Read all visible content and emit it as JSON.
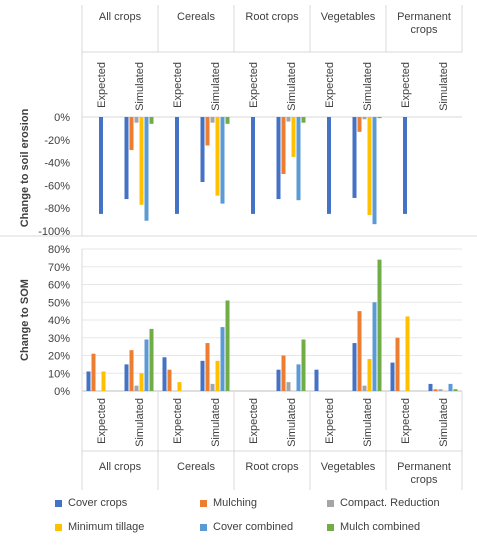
{
  "chart_data": [
    {
      "type": "bar",
      "ylabel": "Change to soil erosion",
      "ylim": [
        -100,
        0
      ],
      "yticks": [
        "0%",
        "-20%",
        "-40%",
        "-60%",
        "-80%",
        "-100%"
      ],
      "grid": false,
      "groups": [
        {
          "name": "All crops",
          "subgroups": [
            "Expected",
            "Simulated"
          ]
        },
        {
          "name": "Cereals",
          "subgroups": [
            "Expected",
            "Simulated"
          ]
        },
        {
          "name": "Root crops",
          "subgroups": [
            "Expected",
            "Simulated"
          ]
        },
        {
          "name": "Vegetables",
          "subgroups": [
            "Expected",
            "Simulated"
          ]
        },
        {
          "name": "Permanent crops",
          "subgroups": [
            "Expected",
            "Simulated"
          ]
        }
      ],
      "series": [
        {
          "name": "Cover crops",
          "values": [
            [
              -85
            ],
            [
              -72
            ],
            [
              -85
            ],
            [
              -57
            ],
            [
              -85
            ],
            [
              -72
            ],
            [
              -85
            ],
            [
              -71
            ],
            [
              -85
            ],
            []
          ]
        },
        {
          "name": "Mulching",
          "values": [
            [],
            [
              -29
            ],
            [],
            [
              -25
            ],
            [],
            [
              -50
            ],
            [],
            [
              -13
            ],
            [],
            []
          ]
        },
        {
          "name": "Compact. Reduction",
          "values": [
            [],
            [
              -5
            ],
            [],
            [
              -5
            ],
            [],
            [
              -4
            ],
            [],
            [
              -2
            ],
            [],
            []
          ]
        },
        {
          "name": "Minimum tillage",
          "values": [
            [],
            [
              -77
            ],
            [],
            [
              -69
            ],
            [],
            [
              -35
            ],
            [],
            [
              -86
            ],
            [],
            []
          ]
        },
        {
          "name": "Cover combined",
          "values": [
            [],
            [
              -91
            ],
            [],
            [
              -76
            ],
            [],
            [
              -73
            ],
            [],
            [
              -94
            ],
            [],
            []
          ]
        },
        {
          "name": "Mulch combined",
          "values": [
            [],
            [
              -6
            ],
            [],
            [
              -6
            ],
            [],
            [
              -5
            ],
            [],
            [
              -1
            ],
            [],
            []
          ]
        }
      ]
    },
    {
      "type": "bar",
      "ylabel": "Change to SOM",
      "ylim": [
        0,
        80
      ],
      "yticks": [
        "0%",
        "10%",
        "20%",
        "30%",
        "40%",
        "50%",
        "60%",
        "70%",
        "80%"
      ],
      "grid": true,
      "groups": [
        {
          "name": "All crops",
          "subgroups": [
            "Expected",
            "Simulated"
          ]
        },
        {
          "name": "Cereals",
          "subgroups": [
            "Expected",
            "Simulated"
          ]
        },
        {
          "name": "Root crops",
          "subgroups": [
            "Expected",
            "Simulated"
          ]
        },
        {
          "name": "Vegetables",
          "subgroups": [
            "Expected",
            "Simulated"
          ]
        },
        {
          "name": "Permanent crops",
          "subgroups": [
            "Expected",
            "Simulated"
          ]
        }
      ],
      "series": [
        {
          "name": "Cover crops",
          "values": [
            11,
            15,
            19,
            17,
            0,
            12,
            12,
            27,
            16,
            4
          ]
        },
        {
          "name": "Mulching",
          "values": [
            21,
            23,
            12,
            27,
            0,
            20,
            0,
            45,
            30,
            1
          ]
        },
        {
          "name": "Compact. Reduction",
          "values": [
            0,
            3,
            0,
            4,
            0,
            5,
            0,
            3,
            0,
            1
          ]
        },
        {
          "name": "Minimum tillage",
          "values": [
            11,
            10,
            5,
            17,
            0,
            0,
            0,
            18,
            42,
            0
          ]
        },
        {
          "name": "Cover combined",
          "values": [
            0,
            29,
            0,
            36,
            0,
            15,
            0,
            50,
            0,
            4
          ]
        },
        {
          "name": "Mulch combined",
          "values": [
            0,
            35,
            0,
            51,
            0,
            29,
            0,
            74,
            0,
            1
          ]
        }
      ]
    }
  ],
  "legend": [
    {
      "label": "Cover crops",
      "color": "#4472C4"
    },
    {
      "label": "Mulching",
      "color": "#ED7D31"
    },
    {
      "label": "Compact. Reduction",
      "color": "#A5A5A5"
    },
    {
      "label": "Minimum tillage",
      "color": "#FFC000"
    },
    {
      "label": "Cover combined",
      "color": "#5B9BD5"
    },
    {
      "label": "Mulch combined",
      "color": "#70AD47"
    }
  ]
}
